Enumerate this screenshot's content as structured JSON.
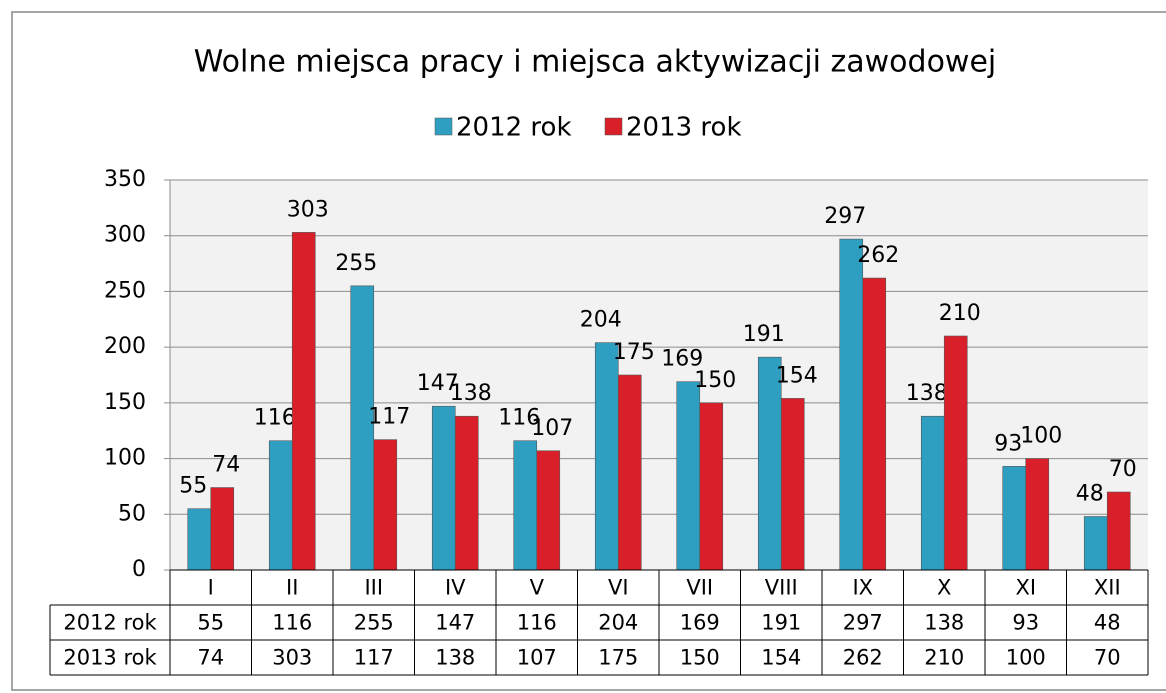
{
  "chart_data": {
    "type": "bar",
    "title": "Wolne miejsca pracy i miejsca aktywizacji zawodowej",
    "categories": [
      "I",
      "II",
      "III",
      "IV",
      "V",
      "VI",
      "VII",
      "VIII",
      "IX",
      "X",
      "XI",
      "XII"
    ],
    "series": [
      {
        "name": "2012 rok",
        "color": "#2e9fc0",
        "values": [
          55,
          116,
          255,
          147,
          116,
          204,
          169,
          191,
          297,
          138,
          93,
          48
        ]
      },
      {
        "name": "2013 rok",
        "color": "#d9202a",
        "values": [
          74,
          303,
          117,
          138,
          107,
          175,
          150,
          154,
          262,
          210,
          100,
          70
        ]
      }
    ],
    "ylim": [
      0,
      350
    ],
    "yticks": [
      0,
      50,
      100,
      150,
      200,
      250,
      300,
      350
    ],
    "grid": true,
    "legend": "top",
    "data_table": true
  }
}
